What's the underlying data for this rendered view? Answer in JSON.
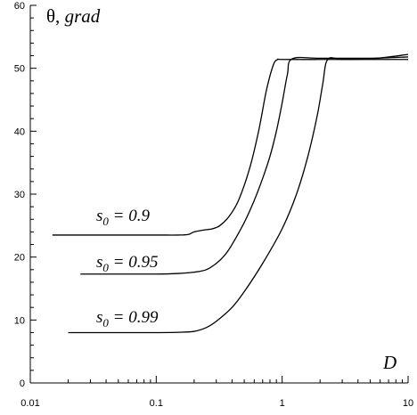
{
  "chart_data": {
    "type": "line",
    "title": "",
    "xlabel": "D",
    "ylabel": "θ, grad",
    "ylabel_symbol": "θ,",
    "ylabel_unit": "grad",
    "x_scale": "log",
    "xlim": [
      0.01,
      10
    ],
    "ylim": [
      0,
      60
    ],
    "x_ticks": [
      0.01,
      0.1,
      1,
      10
    ],
    "x_tick_labels": [
      "0.01",
      "0.1",
      "1",
      "10"
    ],
    "y_ticks": [
      0,
      10,
      20,
      30,
      40,
      50,
      60
    ],
    "y_tick_labels": [
      "0",
      "10",
      "20",
      "30",
      "40",
      "50",
      "60"
    ],
    "grid": false,
    "legend": "none",
    "line_color": "#000000",
    "series": [
      {
        "annotation": {
          "var": "s",
          "sub": "0",
          "value": " = 0.9"
        },
        "x": [
          0.015,
          0.05,
          0.1,
          0.15,
          0.18,
          0.2,
          0.24,
          0.28,
          0.32,
          0.38,
          0.45,
          0.55,
          0.65,
          0.75,
          0.85,
          0.92,
          1.0,
          2.0,
          5.0,
          10.0
        ],
        "y": [
          23.5,
          23.5,
          23.5,
          23.5,
          23.6,
          24.0,
          24.3,
          24.5,
          25.0,
          26.5,
          29.0,
          34.0,
          40.0,
          46.5,
          50.5,
          51.4,
          51.4,
          51.4,
          51.5,
          52.2
        ]
      },
      {
        "annotation": {
          "var": "s",
          "sub": "0",
          "value": " = 0.95"
        },
        "x": [
          0.025,
          0.05,
          0.1,
          0.15,
          0.2,
          0.25,
          0.3,
          0.35,
          0.4,
          0.5,
          0.6,
          0.7,
          0.8,
          0.9,
          1.0,
          1.1,
          1.2,
          2.0,
          5.0,
          10.0
        ],
        "y": [
          17.3,
          17.3,
          17.3,
          17.4,
          17.6,
          18.0,
          19.0,
          20.3,
          22.0,
          25.5,
          29.0,
          32.5,
          36.0,
          40.0,
          44.5,
          49.0,
          51.5,
          51.6,
          51.6,
          51.8
        ]
      },
      {
        "annotation": {
          "var": "s",
          "sub": "0",
          "value": " = 0.99"
        },
        "x": [
          0.02,
          0.05,
          0.1,
          0.15,
          0.2,
          0.25,
          0.3,
          0.4,
          0.5,
          0.7,
          1.0,
          1.3,
          1.6,
          1.9,
          2.1,
          2.3,
          3.0,
          5.0,
          10.0
        ],
        "y": [
          8.0,
          8.0,
          8.0,
          8.05,
          8.2,
          8.8,
          9.8,
          12.0,
          14.5,
          19.0,
          24.5,
          30.0,
          36.0,
          42.5,
          47.5,
          51.4,
          51.4,
          51.4,
          51.4
        ]
      }
    ]
  }
}
